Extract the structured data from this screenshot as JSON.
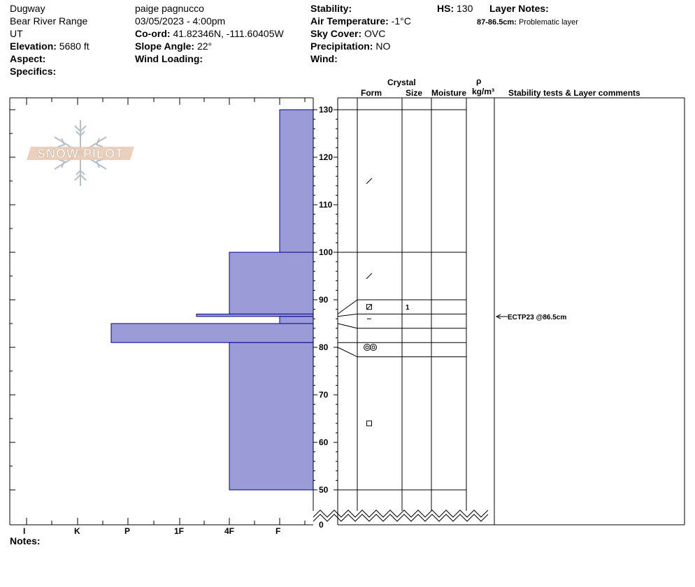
{
  "header": {
    "location": "Dugway",
    "range": "Bear River Range",
    "state": "UT",
    "elevation_label": "Elevation:",
    "elevation_value": "5680 ft",
    "aspect_label": "Aspect:",
    "specifics_label": "Specifics:",
    "observer": "paige pagnucco",
    "datetime": "03/05/2023 - 4:00pm",
    "coord_label": "Co-ord:",
    "coord_value": "41.82346N, -111.60405W",
    "slope_label": "Slope Angle:",
    "slope_value": "22°",
    "wind_loading_label": "Wind Loading:",
    "stability_label": "Stability:",
    "air_temp_label": "Air Temperature:",
    "air_temp_value": "-1°C",
    "sky_label": "Sky Cover:",
    "sky_value": "OVC",
    "precip_label": "Precipitation:",
    "precip_value": "NO",
    "wind_label": "Wind:",
    "hs_label": "HS:",
    "hs_value": "130",
    "layer_notes_label": "Layer Notes:",
    "layer_note_range": "87-86.5cm:",
    "layer_note_text": "Problematic layer"
  },
  "columns": {
    "crystal": "Crystal",
    "form": "Form",
    "size": "Size",
    "moisture": "Moisture",
    "rho": "ρ",
    "density_unit": "kg/m³",
    "stability": "Stability tests & Layer comments"
  },
  "hardness_labels": [
    "I",
    "K",
    "P",
    "1F",
    "4F",
    "F"
  ],
  "height_ticks": [
    130,
    120,
    110,
    100,
    90,
    80,
    70,
    60,
    50,
    0
  ],
  "logo_text": "SNOW PILOT",
  "notes_label": "Notes:",
  "profile": {
    "colors": {
      "fill": "#9b9bd7",
      "stroke": "#00008b"
    },
    "layers": [
      {
        "top": 130,
        "bottom": 100,
        "hardness": "F"
      },
      {
        "top": 100,
        "bottom": 87,
        "hardness": "4F"
      },
      {
        "top": 87,
        "bottom": 86.5,
        "hardness": "1F-"
      },
      {
        "top": 86.5,
        "bottom": 85,
        "hardness": "F"
      },
      {
        "top": 85,
        "bottom": 81,
        "hardness": "P+"
      },
      {
        "top": 81,
        "bottom": 50,
        "hardness": "4F"
      }
    ]
  },
  "crystals": [
    {
      "height": 115,
      "form": "decomposing-fragments"
    },
    {
      "height": 95,
      "form": "decomposing-fragments"
    },
    {
      "height": 88.5,
      "form": "faceted-rounded",
      "size": "1"
    },
    {
      "height": 86,
      "form": "crust"
    },
    {
      "height": 80,
      "form": "melt-forms"
    },
    {
      "height": 64,
      "form": "faceted"
    }
  ],
  "stability_test": {
    "label": "ECTP23 @86.5cm",
    "height": 86.5
  }
}
